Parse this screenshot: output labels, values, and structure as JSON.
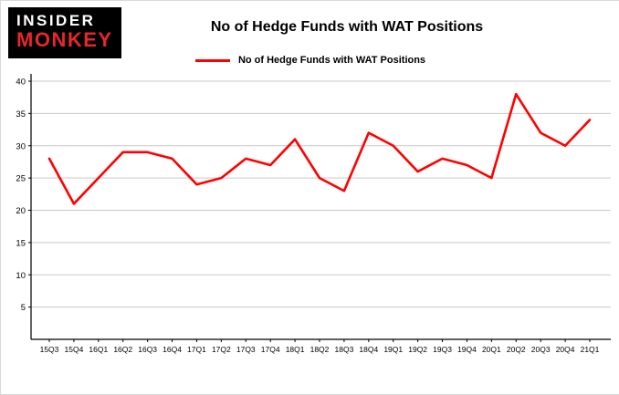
{
  "logo": {
    "line1": "INSIDER",
    "line2": "MONKEY"
  },
  "header": {
    "title": "No of Hedge Funds with WAT Positions"
  },
  "legend": {
    "label": "No of Hedge Funds with WAT Positions"
  },
  "chart_data": {
    "type": "line",
    "title": "No of Hedge Funds with WAT Positions",
    "categories": [
      "15Q3",
      "15Q4",
      "16Q1",
      "16Q2",
      "16Q3",
      "16Q4",
      "17Q1",
      "17Q2",
      "17Q3",
      "17Q4",
      "18Q1",
      "18Q2",
      "18Q3",
      "18Q4",
      "19Q1",
      "19Q2",
      "19Q3",
      "19Q4",
      "20Q1",
      "20Q2",
      "20Q3",
      "20Q4",
      "21Q1"
    ],
    "series": [
      {
        "name": "No of Hedge Funds with WAT Positions",
        "values": [
          28,
          21,
          25,
          29,
          29,
          28,
          24,
          25,
          28,
          27,
          31,
          25,
          23,
          32,
          30,
          26,
          28,
          27,
          25,
          38,
          32,
          30,
          34
        ]
      }
    ],
    "xlabel": "",
    "ylabel": "",
    "ylim": [
      0,
      40
    ],
    "ytick_step": 5,
    "grid": true,
    "legend_position": "top",
    "line_color": "#ff0000",
    "grid_color": "#c9c9c9",
    "axis_color": "#000000"
  }
}
